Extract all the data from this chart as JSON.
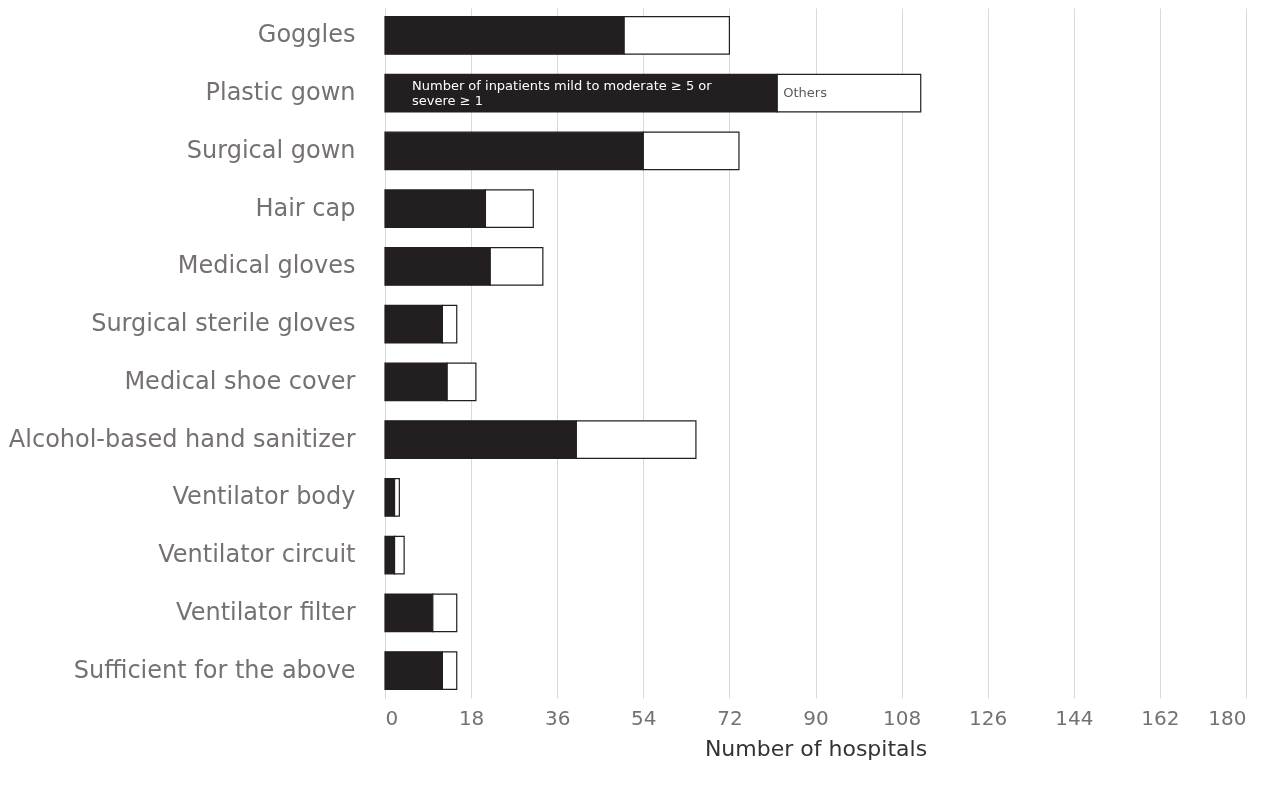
{
  "chart_data": {
    "type": "bar",
    "orientation": "horizontal",
    "stacked": true,
    "xlabel": "Number of hospitals",
    "categories": [
      "Goggles",
      "Plastic gown",
      "Surgical gown",
      "Hair cap",
      "Medical gloves",
      "Surgical sterile gloves",
      "Medical shoe cover",
      "Alcohol-based hand sanitizer",
      "Ventilator body",
      "Ventilator circuit",
      "Ventilator filter",
      "Sufficient for the above"
    ],
    "series": [
      {
        "name": "Number of inpatients mild to moderate ≥ 5 or severe ≥ 1",
        "color": "#231f20",
        "values": [
          50,
          82,
          54,
          21,
          22,
          12,
          13,
          40,
          2,
          2,
          10,
          12
        ]
      },
      {
        "name": "Others",
        "color": "#ffffff",
        "values": [
          22,
          30,
          20,
          10,
          11,
          3,
          6,
          25,
          1,
          2,
          5,
          3
        ]
      }
    ],
    "xlim": [
      0,
      180
    ],
    "xticks": [
      0,
      18,
      36,
      54,
      72,
      90,
      108,
      126,
      144,
      162,
      180
    ],
    "grid": "x",
    "legend": "top"
  }
}
